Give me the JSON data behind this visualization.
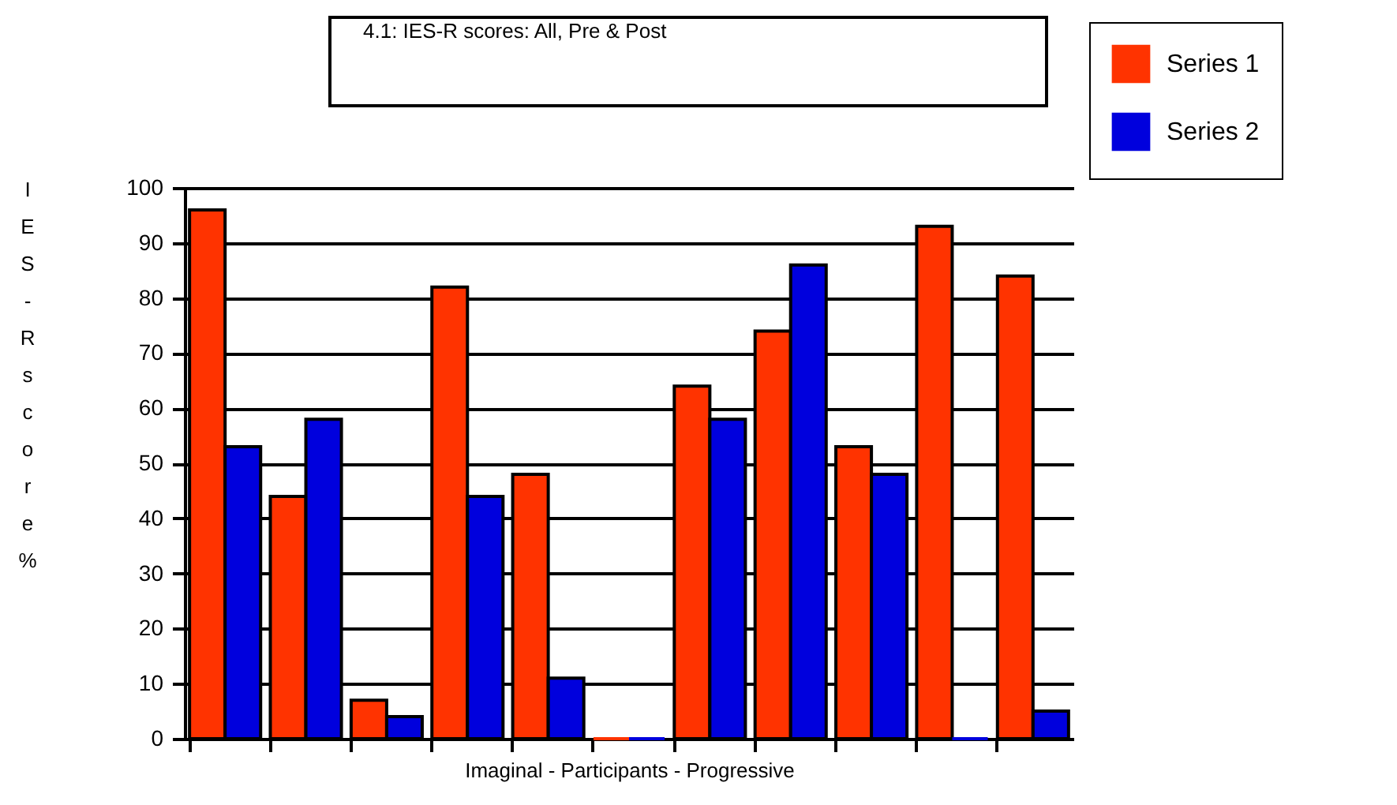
{
  "chart_data": {
    "type": "bar",
    "title": "4.1: IES-R scores: All, Pre & Post",
    "xlabel": "Imaginal - Participants - Progressive",
    "ylabel": "IES-R score %",
    "categories": [
      null,
      null,
      null,
      null,
      null,
      null,
      null,
      null,
      null,
      null,
      null
    ],
    "series": [
      {
        "name": "Series 1",
        "color": "#ff3300",
        "values": [
          96,
          44,
          7,
          82,
          48,
          0,
          64,
          74,
          53,
          93,
          84
        ]
      },
      {
        "name": "Series 2",
        "color": "#0000dd",
        "values": [
          53,
          58,
          4,
          44,
          11,
          0,
          58,
          86,
          48,
          0,
          5
        ]
      }
    ],
    "ylim": [
      0,
      100
    ],
    "yticks": [
      0,
      10,
      20,
      30,
      40,
      50,
      60,
      70,
      80,
      90,
      100
    ],
    "grid": "y",
    "legend": "top right"
  }
}
